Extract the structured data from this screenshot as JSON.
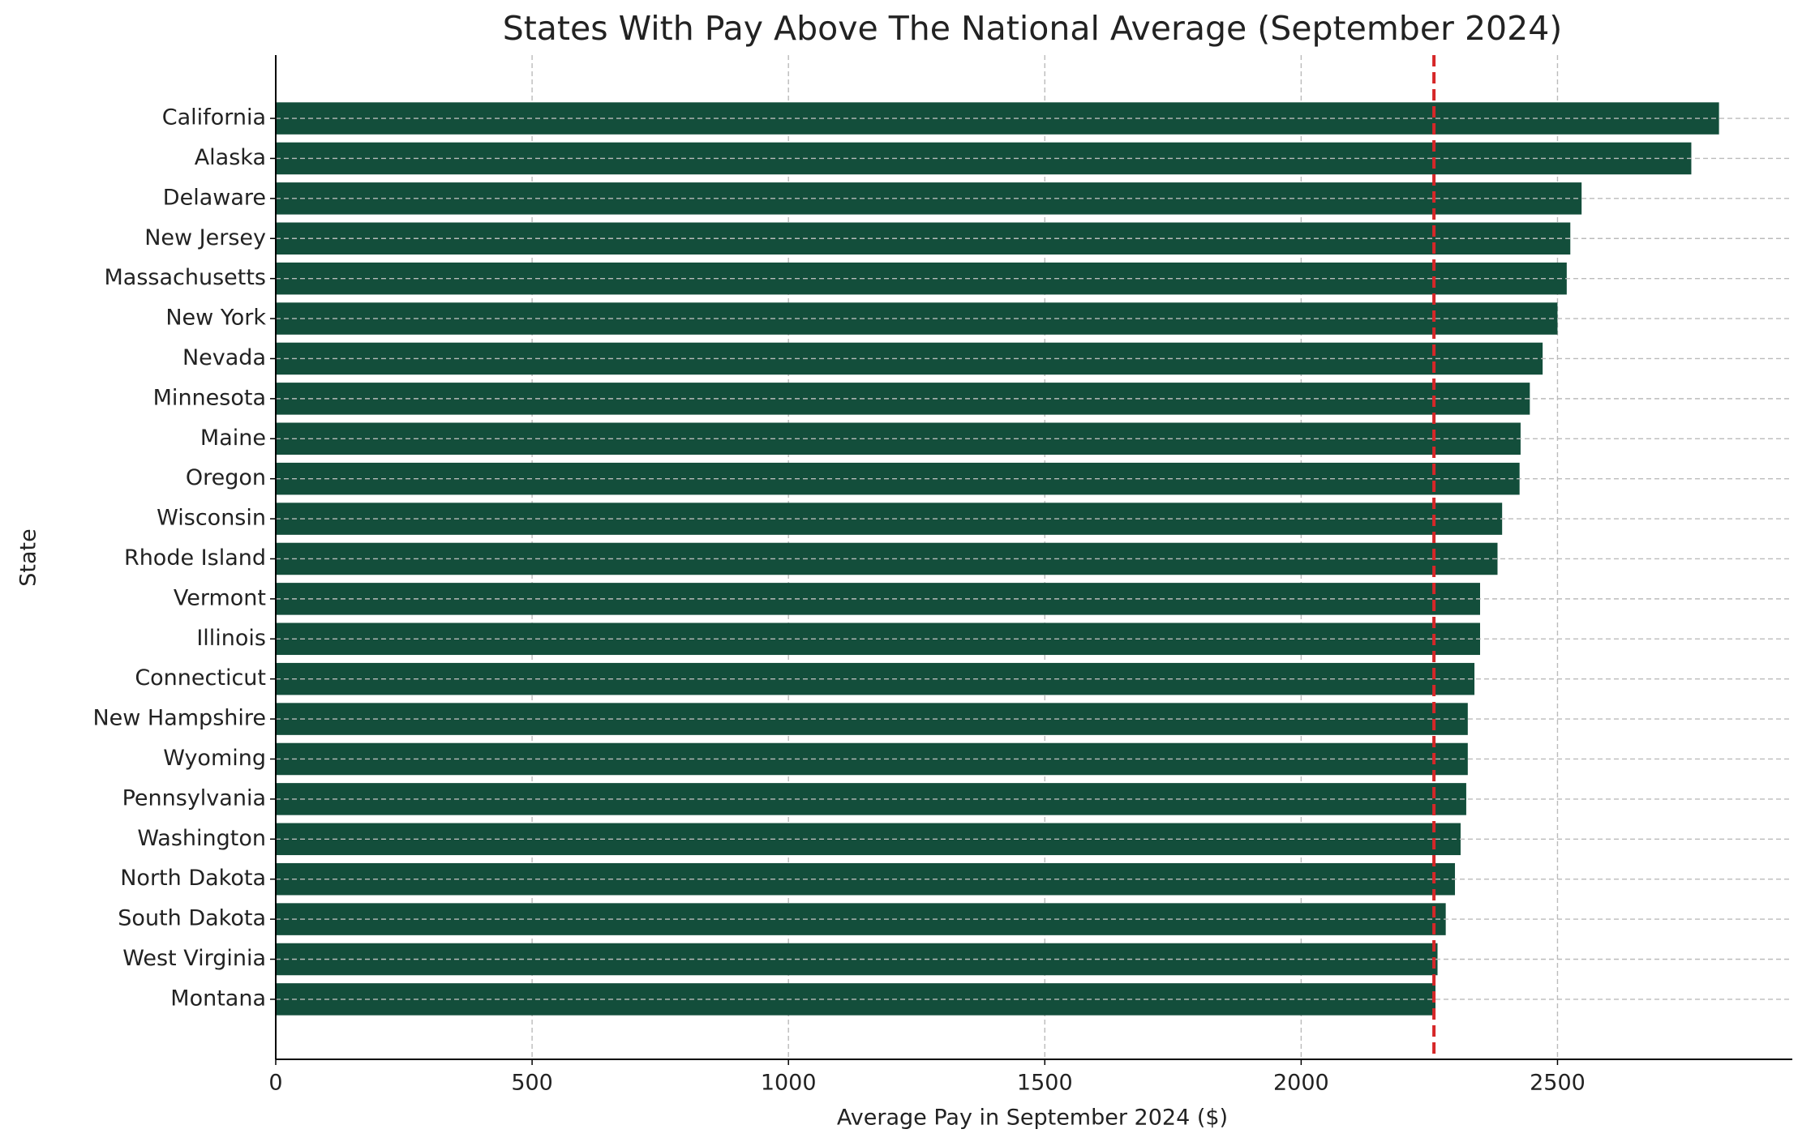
{
  "chart_data": {
    "type": "barh",
    "title": "States With Pay Above The National Average (September 2024)",
    "x_label": "Average Pay in September 2024 ($)",
    "y_label": "State",
    "categories": [
      "California",
      "Alaska",
      "Delaware",
      "New Jersey",
      "Massachusetts",
      "New York",
      "Nevada",
      "Minnesota",
      "Maine",
      "Oregon",
      "Wisconsin",
      "Rhode Island",
      "Vermont",
      "Illinois",
      "Connecticut",
      "New Hampshire",
      "Wyoming",
      "Pennsylvania",
      "Washington",
      "North Dakota",
      "South Dakota",
      "West Virginia",
      "Montana"
    ],
    "values": [
      2815,
      2761,
      2547,
      2525,
      2518,
      2500,
      2471,
      2446,
      2428,
      2426,
      2392,
      2383,
      2349,
      2349,
      2338,
      2325,
      2325,
      2322,
      2311,
      2300,
      2282,
      2266,
      2262
    ],
    "color": "#134e3b",
    "reference_line": {
      "value": 2259,
      "color": "#d62728"
    },
    "xlim": [
      0,
      2958
    ],
    "xticks": [
      0,
      500,
      1000,
      1500,
      2000,
      2500
    ],
    "grid": true
  }
}
